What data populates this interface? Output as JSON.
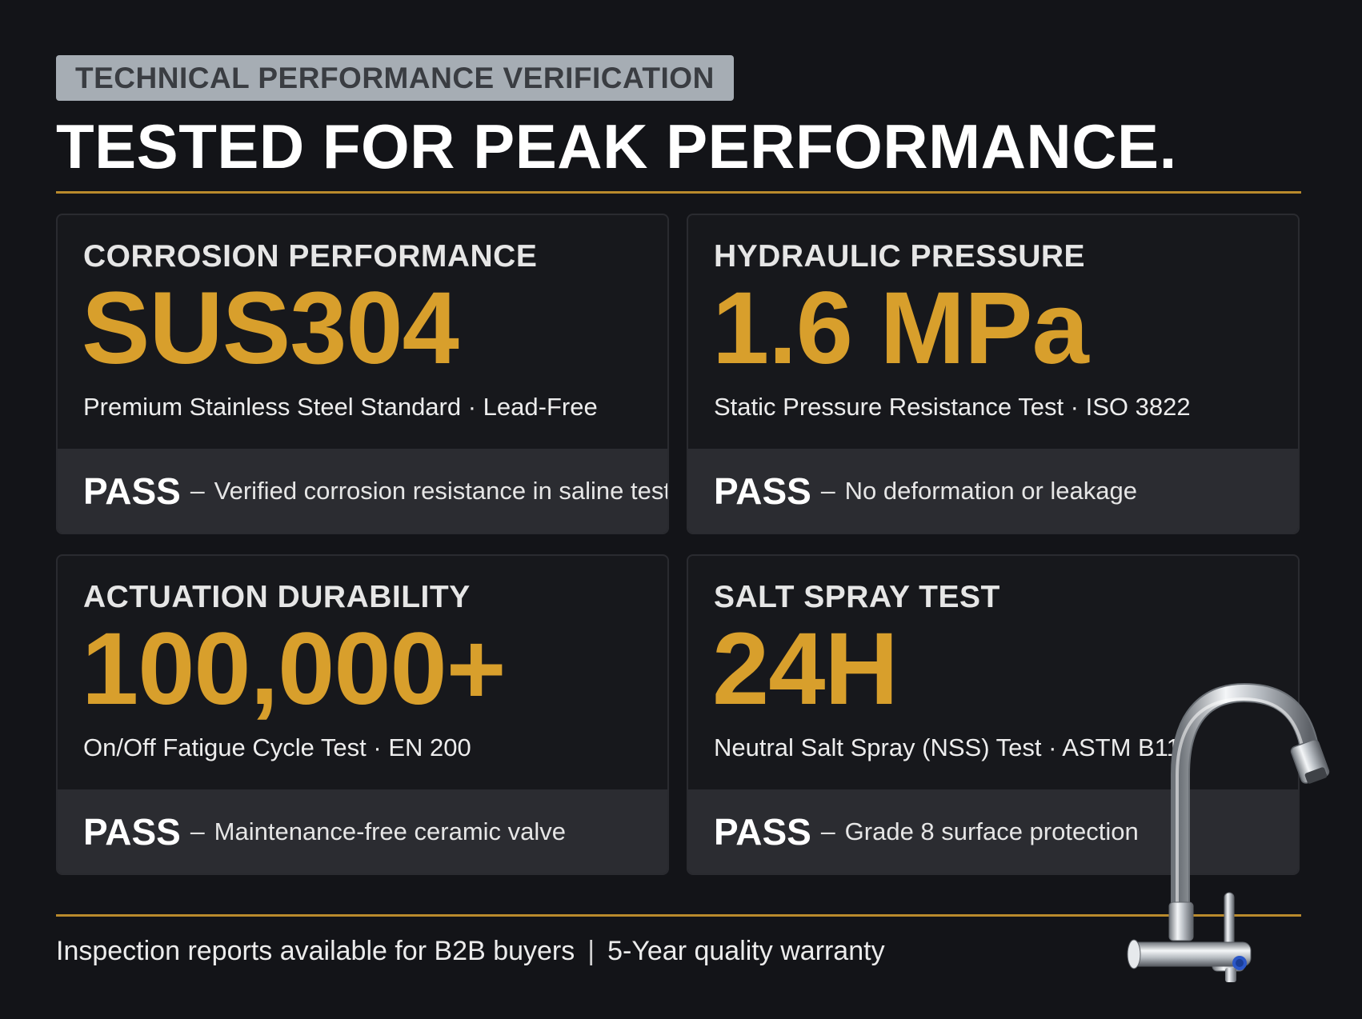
{
  "header": {
    "eyebrow": "TECHNICAL PERFORMANCE VERIFICATION",
    "title": "TESTED FOR PEAK PERFORMANCE."
  },
  "cards": [
    {
      "label": "CORROSION PERFORMANCE",
      "value": "SUS304",
      "subtitle": "Premium Stainless Steel Standard · Lead-Free",
      "status": "PASS",
      "dash": "–",
      "detail": "Verified corrosion resistance in saline tests"
    },
    {
      "label": "HYDRAULIC PRESSURE",
      "value": "1.6 MPa",
      "subtitle": "Static Pressure Resistance Test · ISO 3822",
      "status": "PASS",
      "dash": "–",
      "detail": "No deformation or leakage"
    },
    {
      "label": "ACTUATION DURABILITY",
      "value": "100,000+",
      "subtitle": "On/Off Fatigue Cycle Test · EN 200",
      "status": "PASS",
      "dash": "–",
      "detail": "Maintenance-free ceramic valve"
    },
    {
      "label": "SALT SPRAY TEST",
      "value": "24H",
      "subtitle": "Neutral Salt Spray (NSS) Test · ASTM B117",
      "status": "PASS",
      "dash": "–",
      "detail": "Grade 8 surface protection"
    }
  ],
  "footer": {
    "left": "Inspection reports available for B2B buyers",
    "separator": "|",
    "right": "5-Year quality warranty"
  },
  "colors": {
    "background": "#131418",
    "accent": "#d89f2c",
    "rule": "#b98a2c",
    "card": "#17181c",
    "status_band": "#2b2c31",
    "eyebrow_bg": "#a6adb4"
  },
  "icons": {
    "product_image": "faucet-icon"
  }
}
